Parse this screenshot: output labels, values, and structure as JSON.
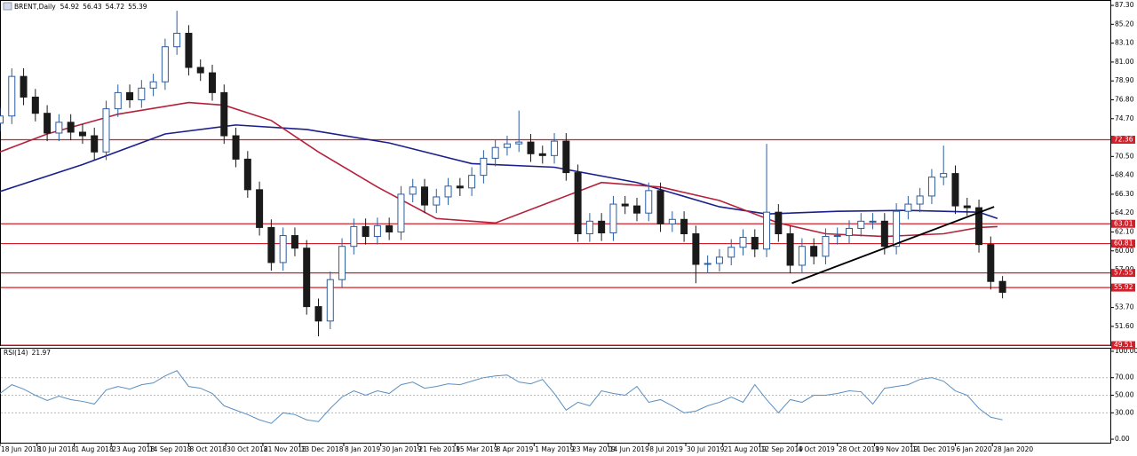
{
  "chart_data": {
    "type": "candlestick",
    "title": "BRENT,Daily",
    "header_values": [
      54.92,
      56.43,
      54.72,
      55.39
    ],
    "up_color": "#2a5d9f",
    "down_color": "#1a1a1a",
    "xlim": [
      "2018-06-18",
      "2020-04-07"
    ],
    "xticks": [
      {
        "value": "2018-06-18",
        "label": "18 Jun 2018"
      },
      {
        "value": "2018-07-10",
        "label": "10 Jul 2018"
      },
      {
        "value": "2018-08-01",
        "label": "1 Aug 2018"
      },
      {
        "value": "2018-08-23",
        "label": "23 Aug 2018"
      },
      {
        "value": "2018-09-14",
        "label": "14 Sep 2018"
      },
      {
        "value": "2018-10-08",
        "label": "8 Oct 2018"
      },
      {
        "value": "2018-10-30",
        "label": "30 Oct 2018"
      },
      {
        "value": "2018-11-21",
        "label": "21 Nov 2018"
      },
      {
        "value": "2018-12-13",
        "label": "13 Dec 2018"
      },
      {
        "value": "2019-01-08",
        "label": "8 Jan 2019"
      },
      {
        "value": "2019-01-30",
        "label": "30 Jan 2019"
      },
      {
        "value": "2019-02-21",
        "label": "21 Feb 2019"
      },
      {
        "value": "2019-03-15",
        "label": "15 Mar 2019"
      },
      {
        "value": "2019-04-08",
        "label": "8 Apr 2019"
      },
      {
        "value": "2019-05-01",
        "label": "1 May 2019"
      },
      {
        "value": "2019-05-23",
        "label": "23 May 2019"
      },
      {
        "value": "2019-06-14",
        "label": "14 Jun 2019"
      },
      {
        "value": "2019-07-08",
        "label": "8 Jul 2019"
      },
      {
        "value": "2019-07-30",
        "label": "30 Jul 2019"
      },
      {
        "value": "2019-08-21",
        "label": "21 Aug 2019"
      },
      {
        "value": "2019-09-12",
        "label": "12 Sep 2019"
      },
      {
        "value": "2019-10-04",
        "label": "4 Oct 2019"
      },
      {
        "value": "2019-10-28",
        "label": "28 Oct 2019"
      },
      {
        "value": "2019-11-19",
        "label": "19 Nov 2019"
      },
      {
        "value": "2019-12-11",
        "label": "11 Dec 2019"
      },
      {
        "value": "2020-01-06",
        "label": "6 Jan 2020"
      },
      {
        "value": "2020-01-28",
        "label": "28 Jan 2020"
      }
    ],
    "ylim": [
      49.42,
      87.8
    ],
    "yticks": [
      {
        "value": 87.3,
        "label": "87.30"
      },
      {
        "value": 85.2,
        "label": "85.20"
      },
      {
        "value": 83.1,
        "label": "83.10"
      },
      {
        "value": 81,
        "label": "81.00"
      },
      {
        "value": 78.9,
        "label": "78.90"
      },
      {
        "value": 76.8,
        "label": "76.80"
      },
      {
        "value": 74.7,
        "label": "74.70"
      },
      {
        "value": 70.5,
        "label": "70.50"
      },
      {
        "value": 68.4,
        "label": "68.40"
      },
      {
        "value": 66.3,
        "label": "66.30"
      },
      {
        "value": 64.2,
        "label": "64.20"
      },
      {
        "value": 62.1,
        "label": "62.10"
      },
      {
        "value": 60,
        "label": "60.00"
      },
      {
        "value": 57.9,
        "label": "57.90"
      },
      {
        "value": 55.8,
        "label": "55.80"
      },
      {
        "value": 53.7,
        "label": "53.70"
      },
      {
        "value": 51.6,
        "label": "51.60"
      }
    ],
    "levels": [
      72.36,
      63.01,
      60.81,
      57.55,
      55.92,
      49.51
    ],
    "level_color": "#d2202a",
    "x": [
      "2018-06-18",
      "2018-06-25",
      "2018-07-02",
      "2018-07-09",
      "2018-07-16",
      "2018-07-23",
      "2018-07-30",
      "2018-08-06",
      "2018-08-13",
      "2018-08-20",
      "2018-08-27",
      "2018-09-03",
      "2018-09-10",
      "2018-09-17",
      "2018-09-24",
      "2018-10-01",
      "2018-10-08",
      "2018-10-15",
      "2018-10-22",
      "2018-10-29",
      "2018-11-05",
      "2018-11-12",
      "2018-11-19",
      "2018-11-26",
      "2018-12-03",
      "2018-12-10",
      "2018-12-17",
      "2018-12-24",
      "2018-12-31",
      "2019-01-07",
      "2019-01-14",
      "2019-01-21",
      "2019-01-28",
      "2019-02-04",
      "2019-02-11",
      "2019-02-18",
      "2019-02-25",
      "2019-03-04",
      "2019-03-11",
      "2019-03-18",
      "2019-03-25",
      "2019-04-01",
      "2019-04-08",
      "2019-04-15",
      "2019-04-22",
      "2019-04-29",
      "2019-05-06",
      "2019-05-13",
      "2019-05-20",
      "2019-05-27",
      "2019-06-03",
      "2019-06-10",
      "2019-06-17",
      "2019-06-24",
      "2019-07-01",
      "2019-07-08",
      "2019-07-15",
      "2019-07-22",
      "2019-07-29",
      "2019-08-05",
      "2019-08-12",
      "2019-08-19",
      "2019-08-26",
      "2019-09-02",
      "2019-09-09",
      "2019-09-16",
      "2019-09-23",
      "2019-09-30",
      "2019-10-07",
      "2019-10-14",
      "2019-10-21",
      "2019-10-28",
      "2019-11-04",
      "2019-11-11",
      "2019-11-18",
      "2019-11-25",
      "2019-12-02",
      "2019-12-09",
      "2019-12-16",
      "2019-12-23",
      "2019-12-30",
      "2020-01-06",
      "2020-01-13",
      "2020-01-20",
      "2020-01-27",
      "2020-02-03"
    ],
    "open": [
      74.2,
      75.0,
      79.4,
      77.1,
      75.3,
      73.1,
      74.3,
      73.2,
      72.8,
      71.0,
      75.8,
      77.6,
      76.8,
      78.1,
      78.8,
      82.7,
      84.2,
      80.4,
      79.8,
      77.6,
      72.8,
      70.2,
      66.8,
      62.6,
      58.7,
      61.7,
      60.3,
      53.8,
      52.2,
      56.8,
      60.5,
      62.7,
      61.6,
      62.8,
      62.1,
      66.3,
      67.1,
      65.1,
      66.0,
      67.2,
      67.0,
      68.4,
      70.3,
      71.5,
      71.9,
      72.1,
      70.8,
      70.6,
      72.2,
      68.7,
      61.9,
      63.3,
      62.0,
      65.2,
      65.0,
      64.2,
      66.7,
      63.0,
      63.5,
      61.9,
      58.5,
      58.6,
      59.3,
      60.4,
      61.5,
      60.2,
      64.3,
      61.9,
      58.4,
      60.5,
      59.4,
      61.6,
      61.7,
      62.5,
      63.3,
      63.3,
      60.5,
      64.4,
      65.2,
      66.1,
      68.2,
      68.6,
      65.0,
      64.8,
      60.7,
      56.6
    ],
    "high": [
      75.9,
      80.3,
      80.3,
      78.0,
      76.2,
      75.2,
      75.2,
      74.1,
      73.7,
      76.7,
      78.5,
      78.5,
      79.0,
      79.7,
      83.6,
      86.7,
      85.1,
      81.3,
      80.7,
      78.5,
      73.7,
      71.1,
      67.7,
      63.5,
      62.6,
      62.6,
      61.2,
      54.7,
      57.7,
      61.4,
      63.6,
      63.6,
      63.7,
      63.7,
      67.2,
      68.0,
      68.0,
      66.9,
      68.1,
      68.1,
      69.3,
      71.2,
      72.4,
      72.8,
      75.6,
      73.0,
      71.7,
      73.1,
      73.1,
      69.6,
      64.2,
      64.2,
      66.1,
      66.1,
      65.9,
      67.6,
      67.6,
      64.4,
      64.4,
      62.8,
      59.5,
      60.2,
      61.3,
      62.4,
      62.4,
      71.9,
      65.2,
      62.8,
      61.4,
      61.4,
      62.5,
      62.6,
      63.4,
      64.2,
      64.2,
      64.2,
      65.3,
      66.1,
      67.0,
      69.1,
      71.7,
      69.5,
      65.9,
      65.7,
      61.6,
      57.2
    ],
    "low": [
      73.3,
      74.1,
      76.2,
      74.4,
      72.2,
      72.2,
      72.3,
      71.9,
      70.1,
      70.1,
      74.9,
      75.9,
      75.9,
      77.2,
      77.9,
      81.8,
      79.5,
      78.9,
      76.7,
      71.9,
      69.3,
      65.9,
      61.7,
      57.8,
      57.8,
      59.4,
      52.9,
      50.5,
      51.3,
      55.9,
      59.6,
      60.7,
      60.7,
      61.2,
      61.2,
      65.4,
      64.2,
      64.2,
      65.1,
      66.1,
      66.1,
      67.5,
      69.4,
      70.6,
      71.0,
      69.9,
      69.7,
      69.7,
      67.8,
      61.0,
      61.0,
      61.1,
      61.1,
      64.1,
      63.3,
      63.3,
      62.1,
      62.1,
      61.0,
      56.4,
      57.6,
      57.7,
      58.4,
      59.5,
      59.3,
      59.3,
      61.0,
      57.5,
      57.5,
      58.5,
      58.5,
      60.7,
      60.8,
      61.6,
      62.4,
      59.6,
      59.6,
      63.5,
      64.3,
      65.2,
      67.3,
      64.1,
      63.9,
      59.8,
      55.7,
      54.72
    ],
    "close": [
      75.0,
      79.4,
      77.1,
      75.3,
      73.1,
      74.3,
      73.2,
      72.8,
      71.0,
      75.8,
      77.6,
      76.8,
      78.1,
      78.8,
      82.7,
      84.2,
      80.4,
      79.8,
      77.6,
      72.8,
      70.2,
      66.8,
      62.6,
      58.7,
      61.7,
      60.3,
      53.8,
      52.2,
      56.8,
      60.5,
      62.7,
      61.6,
      62.8,
      62.1,
      66.3,
      67.1,
      65.1,
      66.0,
      67.2,
      67.0,
      68.4,
      70.3,
      71.5,
      71.9,
      72.1,
      70.8,
      70.6,
      72.2,
      68.7,
      61.9,
      63.3,
      62.0,
      65.2,
      65.0,
      64.2,
      66.7,
      63.0,
      63.5,
      61.9,
      58.5,
      58.6,
      59.3,
      60.4,
      61.5,
      60.2,
      64.3,
      61.9,
      58.4,
      60.5,
      59.4,
      61.6,
      61.7,
      62.5,
      63.3,
      63.3,
      60.5,
      64.4,
      65.2,
      66.1,
      68.2,
      68.6,
      65.0,
      64.8,
      60.7,
      56.6,
      55.39
    ],
    "moving_averages": [
      {
        "color": "#1a1f8c",
        "x": [
          "2018-06-18",
          "2018-08-06",
          "2018-09-24",
          "2018-11-05",
          "2018-12-17",
          "2019-02-04",
          "2019-03-25",
          "2019-05-13",
          "2019-07-01",
          "2019-08-19",
          "2019-09-16",
          "2019-10-28",
          "2019-12-09",
          "2020-01-20",
          "2020-01-31"
        ],
        "values": [
          66.6,
          69.6,
          73.0,
          74.0,
          73.5,
          72.0,
          69.7,
          69.3,
          67.6,
          64.9,
          64.1,
          64.4,
          64.5,
          64.3,
          63.6
        ]
      },
      {
        "color": "#b5213b",
        "x": [
          "2018-06-18",
          "2018-07-16",
          "2018-08-27",
          "2018-10-08",
          "2018-10-29",
          "2018-11-26",
          "2018-12-24",
          "2019-01-28",
          "2019-03-04",
          "2019-04-08",
          "2019-05-13",
          "2019-06-10",
          "2019-07-15",
          "2019-08-19",
          "2019-09-23",
          "2019-10-21",
          "2019-11-25",
          "2019-12-30",
          "2020-01-20",
          "2020-01-31"
        ],
        "values": [
          71.0,
          73.0,
          75.2,
          76.5,
          76.2,
          74.5,
          71.0,
          67.1,
          63.6,
          63.1,
          65.6,
          67.6,
          67.1,
          65.6,
          63.1,
          61.9,
          61.6,
          61.9,
          62.6,
          62.7
        ]
      }
    ],
    "trendline": {
      "color": "#000000",
      "x": [
        "2019-10-01",
        "2020-01-29"
      ],
      "values": [
        56.4,
        64.9
      ]
    },
    "rsi": {
      "title": "RSI(14)",
      "color": "#5b8fc0",
      "ylim": [
        -5,
        103
      ],
      "yticks": [
        {
          "value": 100,
          "label": "100.00"
        },
        {
          "value": 70,
          "label": "70.00"
        },
        {
          "value": 50,
          "label": "50.00"
        },
        {
          "value": 30,
          "label": "30.00"
        },
        {
          "value": 0,
          "label": "0.00"
        }
      ],
      "grid": true,
      "values": [
        52,
        62,
        57,
        50,
        44,
        49,
        45,
        43,
        40,
        56,
        60,
        57,
        62,
        64,
        72,
        78,
        60,
        58,
        52,
        38,
        33,
        28,
        22,
        18,
        30,
        28,
        22,
        20,
        35,
        48,
        55,
        50,
        55,
        52,
        62,
        65,
        58,
        60,
        63,
        62,
        66,
        70,
        72,
        73,
        65,
        63,
        68,
        52,
        33,
        42,
        38,
        55,
        52,
        50,
        60,
        42,
        45,
        38,
        30,
        32,
        38,
        42,
        48,
        42,
        62,
        45,
        30,
        45,
        42,
        50,
        50,
        52,
        55,
        54,
        40,
        58,
        60,
        62,
        68,
        70,
        66,
        55,
        50,
        35,
        25,
        21.97
      ]
    }
  }
}
